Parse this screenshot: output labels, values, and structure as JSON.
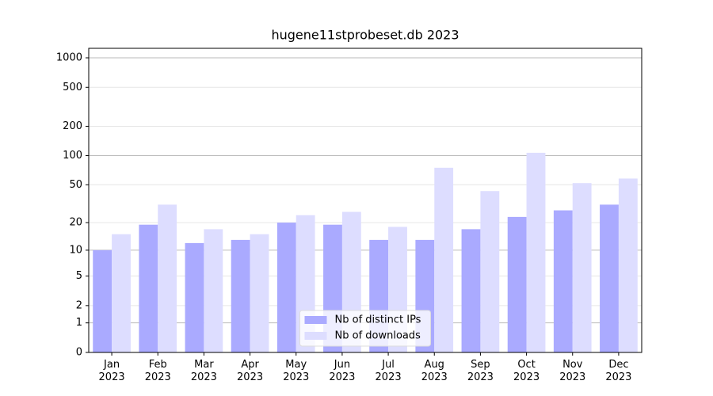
{
  "chart_data": {
    "type": "bar",
    "title": "hugene11stprobeset.db 2023",
    "categories": [
      "Jan\n2023",
      "Feb\n2023",
      "Mar\n2023",
      "Apr\n2023",
      "May\n2023",
      "Jun\n2023",
      "Jul\n2023",
      "Aug\n2023",
      "Sep\n2023",
      "Oct\n2023",
      "Nov\n2023",
      "Dec\n2023"
    ],
    "series": [
      {
        "name": "Nb of distinct IPs",
        "color": "#aaaaff",
        "values": [
          10,
          19,
          12,
          13,
          20,
          19,
          13,
          13,
          17,
          23,
          27,
          31
        ]
      },
      {
        "name": "Nb of downloads",
        "color": "#ddddff",
        "values": [
          15,
          31,
          17,
          15,
          24,
          26,
          18,
          75,
          43,
          107,
          52,
          58
        ]
      }
    ],
    "y_scale": "log1p",
    "ylim": [
      0,
      1250
    ],
    "yticks": [
      0,
      1,
      2,
      5,
      10,
      20,
      50,
      100,
      200,
      500,
      1000
    ],
    "grid": true,
    "legend_loc": "lower center"
  }
}
